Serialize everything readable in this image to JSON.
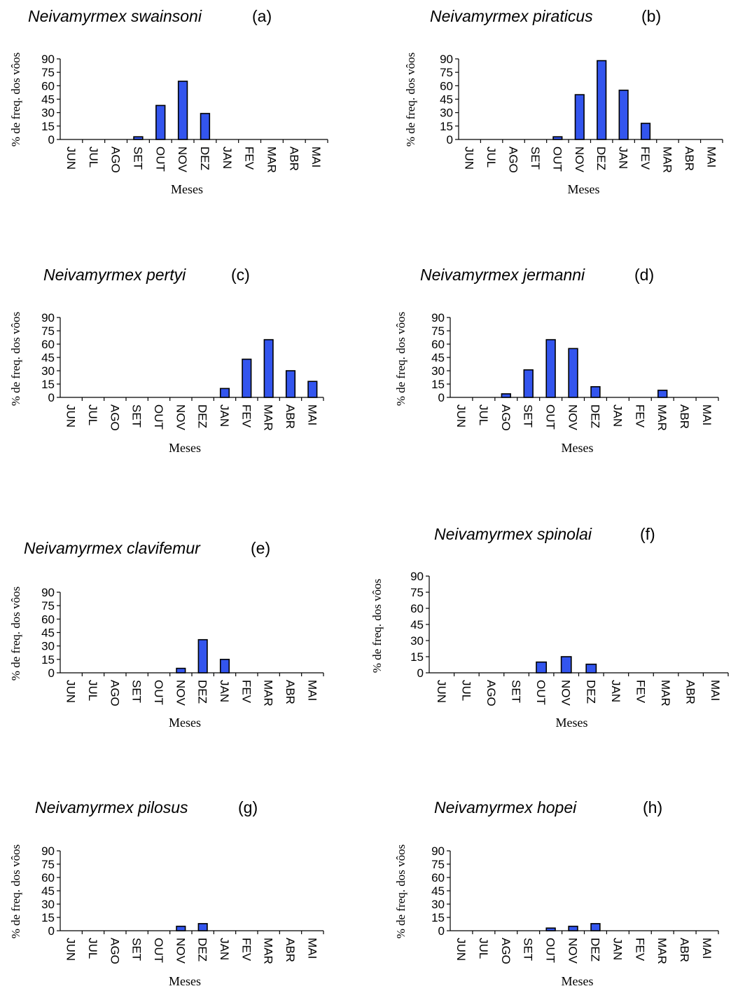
{
  "figure": {
    "bar_color": "#3355ee"
  },
  "chart_data": [
    {
      "type": "bar",
      "species": "Neivamyrmex swainsoni",
      "panel_label": "(a)",
      "categories": [
        "JUN",
        "JUL",
        "AGO",
        "SET",
        "OUT",
        "NOV",
        "DEZ",
        "JAN",
        "FEV",
        "MAR",
        "ABR",
        "MAI"
      ],
      "values": [
        0,
        0,
        0,
        3,
        38,
        65,
        29,
        0,
        0,
        0,
        0,
        0
      ],
      "xlabel": "Meses",
      "ylabel": "% de freq. dos vôos",
      "ylim": [
        0,
        90
      ],
      "yticks": [
        0,
        15,
        30,
        45,
        60,
        75,
        90
      ],
      "grid": false
    },
    {
      "type": "bar",
      "species": "Neivamyrmex piraticus",
      "panel_label": "(b)",
      "categories": [
        "JUN",
        "JUL",
        "AGO",
        "SET",
        "OUT",
        "NOV",
        "DEZ",
        "JAN",
        "FEV",
        "MAR",
        "ABR",
        "MAI"
      ],
      "values": [
        0,
        0,
        0,
        0,
        3,
        50,
        88,
        55,
        18,
        0,
        0,
        0
      ],
      "xlabel": "Meses",
      "ylabel": "% de freq. dos vôos",
      "ylim": [
        0,
        90
      ],
      "yticks": [
        0,
        15,
        30,
        45,
        60,
        75,
        90
      ],
      "grid": false
    },
    {
      "type": "bar",
      "species": "Neivamyrmex pertyi",
      "panel_label": "(c)",
      "categories": [
        "JUN",
        "JUL",
        "AGO",
        "SET",
        "OUT",
        "NOV",
        "DEZ",
        "JAN",
        "FEV",
        "MAR",
        "ABR",
        "MAI"
      ],
      "values": [
        0,
        0,
        0,
        0,
        0,
        0,
        0,
        10,
        43,
        65,
        30,
        18
      ],
      "xlabel": "Meses",
      "ylabel": "% de freq. dos vôos",
      "ylim": [
        0,
        90
      ],
      "yticks": [
        0,
        15,
        30,
        45,
        60,
        75,
        90
      ],
      "grid": false
    },
    {
      "type": "bar",
      "species": "Neivamyrmex jermanni",
      "panel_label": "(d)",
      "categories": [
        "JUN",
        "JUL",
        "AGO",
        "SET",
        "OUT",
        "NOV",
        "DEZ",
        "JAN",
        "FEV",
        "MAR",
        "ABR",
        "MAI"
      ],
      "values": [
        0,
        0,
        4,
        31,
        65,
        55,
        12,
        0,
        0,
        8,
        0,
        0
      ],
      "xlabel": "Meses",
      "ylabel": "% de freq. dos vôos",
      "ylim": [
        0,
        90
      ],
      "yticks": [
        0,
        15,
        30,
        45,
        60,
        75,
        90
      ],
      "grid": false
    },
    {
      "type": "bar",
      "species": "Neivamyrmex clavifemur",
      "panel_label": "(e)",
      "categories": [
        "JUN",
        "JUL",
        "AGO",
        "SET",
        "OUT",
        "NOV",
        "DEZ",
        "JAN",
        "FEV",
        "MAR",
        "ABR",
        "MAI"
      ],
      "values": [
        0,
        0,
        0,
        0,
        0,
        5,
        37,
        15,
        0,
        0,
        0,
        0
      ],
      "xlabel": "Meses",
      "ylabel": "% de freq. dos vôos",
      "ylim": [
        0,
        90
      ],
      "yticks": [
        0,
        15,
        30,
        45,
        60,
        75,
        90
      ],
      "grid": false
    },
    {
      "type": "bar",
      "species": "Neivamyrmex spinolai",
      "panel_label": "(f)",
      "categories": [
        "JUN",
        "JUL",
        "AGO",
        "SET",
        "OUT",
        "NOV",
        "DEZ",
        "JAN",
        "FEV",
        "MAR",
        "ABR",
        "MAI"
      ],
      "values": [
        0,
        0,
        0,
        0,
        10,
        15,
        8,
        0,
        0,
        0,
        0,
        0
      ],
      "xlabel": "Meses",
      "ylabel": "% de freq. dos vôos",
      "ylim": [
        0,
        90
      ],
      "yticks": [
        0,
        15,
        30,
        45,
        60,
        75,
        90
      ],
      "grid": false
    },
    {
      "type": "bar",
      "species": "Neivamyrmex pilosus",
      "panel_label": "(g)",
      "categories": [
        "JUN",
        "JUL",
        "AGO",
        "SET",
        "OUT",
        "NOV",
        "DEZ",
        "JAN",
        "FEV",
        "MAR",
        "ABR",
        "MAI"
      ],
      "values": [
        0,
        0,
        0,
        0,
        0,
        5,
        8,
        0,
        0,
        0,
        0,
        0
      ],
      "xlabel": "Meses",
      "ylabel": "% de freq. dos vôos",
      "ylim": [
        0,
        90
      ],
      "yticks": [
        0,
        15,
        30,
        45,
        60,
        75,
        90
      ],
      "grid": false
    },
    {
      "type": "bar",
      "species": "Neivamyrmex hopei",
      "panel_label": "(h)",
      "categories": [
        "JUN",
        "JUL",
        "AGO",
        "SET",
        "OUT",
        "NOV",
        "DEZ",
        "JAN",
        "FEV",
        "MAR",
        "ABR",
        "MAI"
      ],
      "values": [
        0,
        0,
        0,
        0,
        3,
        5,
        8,
        0,
        0,
        0,
        0,
        0
      ],
      "xlabel": "Meses",
      "ylabel": "% de freq. dos vôos",
      "ylim": [
        0,
        90
      ],
      "yticks": [
        0,
        15,
        30,
        45,
        60,
        75,
        90
      ],
      "grid": false
    }
  ]
}
